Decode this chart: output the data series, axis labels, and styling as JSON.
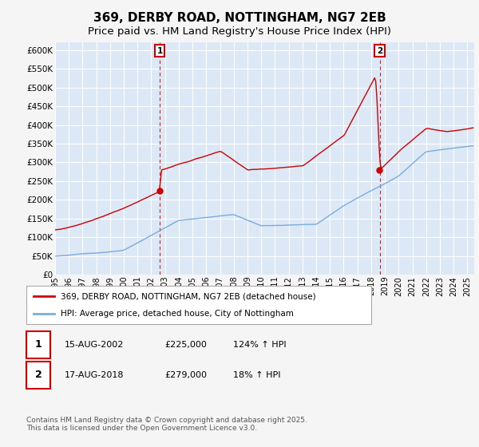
{
  "title": "369, DERBY ROAD, NOTTINGHAM, NG7 2EB",
  "subtitle": "Price paid vs. HM Land Registry's House Price Index (HPI)",
  "legend_line1": "369, DERBY ROAD, NOTTINGHAM, NG7 2EB (detached house)",
  "legend_line2": "HPI: Average price, detached house, City of Nottingham",
  "annotation1_label": "1",
  "annotation1_date": "15-AUG-2002",
  "annotation1_price": "£225,000",
  "annotation1_hpi": "124% ↑ HPI",
  "annotation2_label": "2",
  "annotation2_date": "17-AUG-2018",
  "annotation2_price": "£279,000",
  "annotation2_hpi": "18% ↑ HPI",
  "footer": "Contains HM Land Registry data © Crown copyright and database right 2025.\nThis data is licensed under the Open Government Licence v3.0.",
  "red_color": "#cc0000",
  "blue_color": "#7aacdc",
  "bg_color": "#dce8f5",
  "grid_color": "#ffffff",
  "fig_bg": "#f5f5f5",
  "sale1_year": 2002.617,
  "sale1_price": 225000,
  "sale2_year": 2018.617,
  "sale2_price": 279000,
  "ylim": [
    0,
    620000
  ],
  "yticks": [
    0,
    50000,
    100000,
    150000,
    200000,
    250000,
    300000,
    350000,
    400000,
    450000,
    500000,
    550000,
    600000
  ],
  "xmin": 1995.0,
  "xmax": 2025.5
}
